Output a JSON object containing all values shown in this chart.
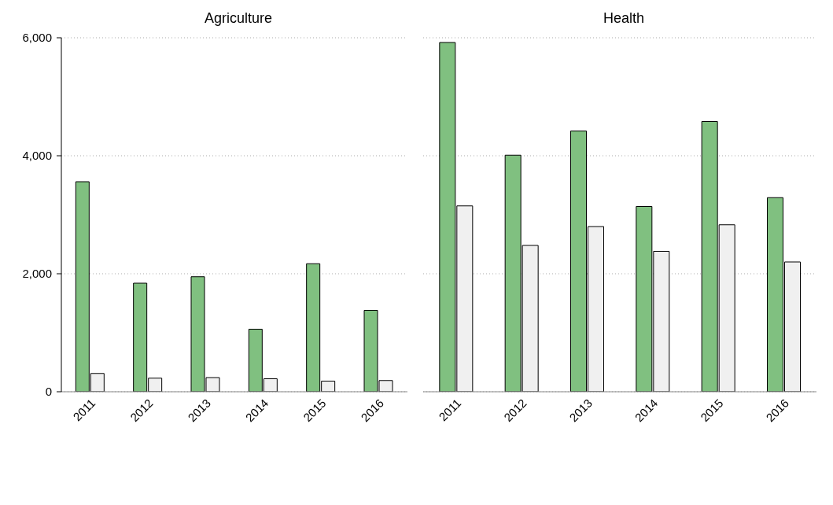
{
  "chart_data": [
    {
      "type": "bar",
      "title": "Agriculture",
      "categories": [
        "2011",
        "2012",
        "2013",
        "2014",
        "2015",
        "2016"
      ],
      "series": [
        {
          "color": "#80c080",
          "values": [
            3560,
            1840,
            1950,
            1060,
            2170,
            1380
          ]
        },
        {
          "color": "#f0f0f0",
          "values": [
            310,
            230,
            240,
            220,
            180,
            190
          ]
        }
      ],
      "ylim": [
        0,
        6000
      ],
      "yticks": [
        0,
        {
          "value": 2000,
          "label": "2,000"
        },
        {
          "value": 4000,
          "label": "4,000"
        },
        {
          "value": 6000,
          "label": "6,000"
        }
      ],
      "grid": "y"
    },
    {
      "type": "bar",
      "title": "Health",
      "categories": [
        "2011",
        "2012",
        "2013",
        "2014",
        "2015",
        "2016"
      ],
      "series": [
        {
          "color": "#80c080",
          "values": [
            5920,
            4010,
            4420,
            3140,
            4580,
            3290
          ]
        },
        {
          "color": "#f0f0f0",
          "values": [
            3150,
            2480,
            2800,
            2380,
            2830,
            2200
          ]
        }
      ],
      "ylim": [
        0,
        6000
      ],
      "yticks": [
        {
          "value": 0,
          "label": null
        },
        {
          "value": 2000,
          "label": null
        },
        {
          "value": 4000,
          "label": null
        },
        {
          "value": 6000,
          "label": null
        }
      ],
      "grid": "y",
      "tick_labels": "x"
    }
  ]
}
